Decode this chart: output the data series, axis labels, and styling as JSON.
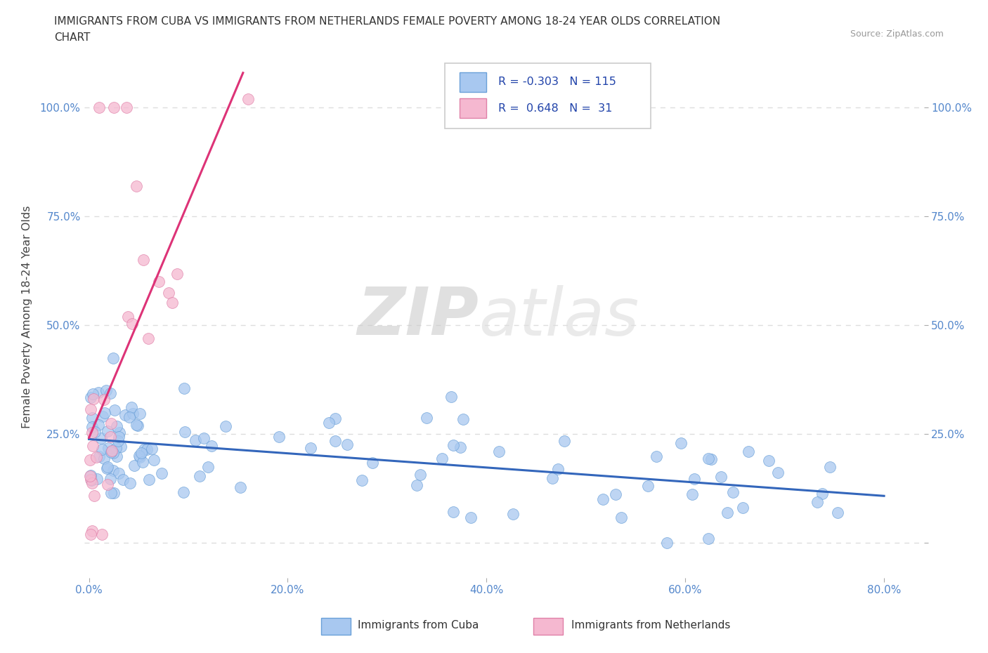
{
  "title_line1": "IMMIGRANTS FROM CUBA VS IMMIGRANTS FROM NETHERLANDS FEMALE POVERTY AMONG 18-24 YEAR OLDS CORRELATION",
  "title_line2": "CHART",
  "source": "Source: ZipAtlas.com",
  "ylabel": "Female Poverty Among 18-24 Year Olds",
  "watermark_zip": "ZIP",
  "watermark_atlas": "atlas",
  "xlim": [
    -0.005,
    0.84
  ],
  "ylim": [
    -0.08,
    1.12
  ],
  "xticks": [
    0.0,
    0.2,
    0.4,
    0.6,
    0.8
  ],
  "xticklabels": [
    "0.0%",
    "20.0%",
    "40.0%",
    "60.0%",
    "80.0%"
  ],
  "yticks": [
    0.0,
    0.25,
    0.5,
    0.75,
    1.0
  ],
  "yticklabels_left": [
    "",
    "25.0%",
    "50.0%",
    "75.0%",
    "100.0%"
  ],
  "yticklabels_right": [
    "",
    "25.0%",
    "50.0%",
    "75.0%",
    "100.0%"
  ],
  "cuba_color": "#a8c8f0",
  "cuba_edge": "#6aa0d8",
  "netherlands_color": "#f5b8d0",
  "netherlands_edge": "#e080a8",
  "trend_cuba_color": "#3366bb",
  "trend_netherlands_color": "#dd3377",
  "legend_label_cuba": "Immigrants from Cuba",
  "legend_label_netherlands": "Immigrants from Netherlands",
  "R_cuba": -0.303,
  "N_cuba": 115,
  "R_netherlands": 0.648,
  "N_netherlands": 31,
  "tick_color": "#5588cc",
  "grid_color": "#dddddd",
  "title_color": "#333333",
  "source_color": "#999999"
}
